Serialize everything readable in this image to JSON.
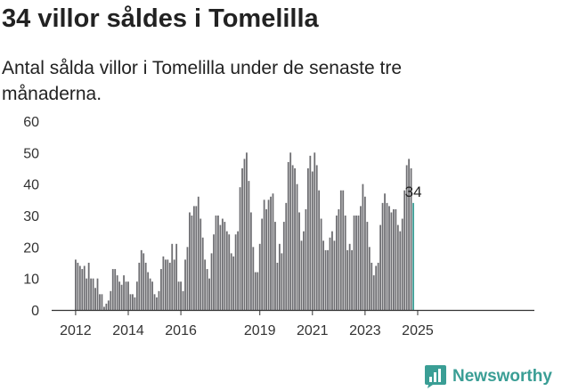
{
  "header": {
    "title": "34 villor såldes i Tomelilla",
    "subtitle": "Antal sålda villor i Tomelilla under de senaste tre månaderna."
  },
  "brand": {
    "name": "Newsworthy"
  },
  "colors": {
    "bar": "#6e6e72",
    "highlight": "#3a9e95",
    "axis": "#333333"
  },
  "chart_data": {
    "type": "bar",
    "title": "34 villor såldes i Tomelilla",
    "subtitle": "Antal sålda villor i Tomelilla under de senaste tre månaderna.",
    "xlabel": "",
    "ylabel": "",
    "ylim": [
      0,
      60
    ],
    "yticks": [
      0,
      10,
      20,
      30,
      40,
      50,
      60
    ],
    "xticks": [
      "2012",
      "2014",
      "2016",
      "2019",
      "2021",
      "2023",
      "2025"
    ],
    "grid": false,
    "start": "2012-01",
    "last_value_label": "34",
    "values": [
      16,
      15,
      14,
      13,
      14,
      10,
      15,
      10,
      10,
      7,
      10,
      5,
      5,
      1,
      2,
      3,
      6,
      13,
      13,
      11,
      9,
      8,
      11,
      9,
      9,
      5,
      5,
      4,
      9,
      15,
      19,
      18,
      15,
      12,
      10,
      9,
      5,
      4,
      6,
      13,
      17,
      16,
      16,
      15,
      21,
      16,
      21,
      9,
      9,
      6,
      16,
      20,
      31,
      30,
      33,
      33,
      36,
      29,
      23,
      16,
      13,
      10,
      18,
      24,
      30,
      30,
      27,
      29,
      28,
      25,
      24,
      18,
      17,
      24,
      25,
      39,
      45,
      48,
      50,
      41,
      31,
      20,
      12,
      12,
      21,
      29,
      35,
      32,
      35,
      36,
      37,
      28,
      15,
      21,
      18,
      28,
      34,
      47,
      50,
      46,
      45,
      40,
      31,
      22,
      25,
      32,
      45,
      49,
      44,
      50,
      46,
      38,
      29,
      22,
      19,
      19,
      23,
      25,
      22,
      30,
      32,
      38,
      38,
      30,
      19,
      21,
      19,
      30,
      30,
      30,
      33,
      40,
      36,
      28,
      20,
      15,
      11,
      14,
      15,
      27,
      34,
      37,
      34,
      33,
      31,
      32,
      32,
      27,
      25,
      29,
      38,
      46,
      48,
      45,
      34
    ]
  }
}
